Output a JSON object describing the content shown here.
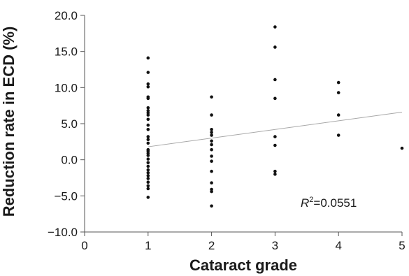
{
  "chart_data": {
    "type": "scatter",
    "title": "",
    "xlabel": "Cataract grade",
    "ylabel": "Reduction rate in ECD (%)",
    "xlim": [
      0,
      5
    ],
    "ylim": [
      -10,
      20
    ],
    "xticks": [
      "0",
      "1",
      "2",
      "3",
      "4",
      "5"
    ],
    "yticks": [
      "20.0",
      "15.0",
      "10.0",
      "5.0",
      "0.0",
      "−5.0",
      "−10.0"
    ],
    "grid": false,
    "legend": "none",
    "colors": {
      "points": "#111111",
      "trendline": "#a8a8a8",
      "axis": "#555555"
    },
    "annotation": {
      "italic_part": "R",
      "superscript": "2",
      "rest": "=0.0551"
    },
    "trendline": {
      "x": [
        1,
        5
      ],
      "y": [
        1.8,
        6.6
      ]
    },
    "points": [
      {
        "x": 1,
        "y": 14.1
      },
      {
        "x": 1,
        "y": 12.1
      },
      {
        "x": 1,
        "y": 10.5
      },
      {
        "x": 1,
        "y": 10.1
      },
      {
        "x": 1,
        "y": 8.7
      },
      {
        "x": 1,
        "y": 8.5
      },
      {
        "x": 1,
        "y": 7.2
      },
      {
        "x": 1,
        "y": 6.8
      },
      {
        "x": 1,
        "y": 6.5
      },
      {
        "x": 1,
        "y": 6.2
      },
      {
        "x": 1,
        "y": 5.6
      },
      {
        "x": 1,
        "y": 4.8
      },
      {
        "x": 1,
        "y": 4.2
      },
      {
        "x": 1,
        "y": 3.2
      },
      {
        "x": 1,
        "y": 2.8
      },
      {
        "x": 1,
        "y": 2.3
      },
      {
        "x": 1,
        "y": 1.4
      },
      {
        "x": 1,
        "y": 1.2
      },
      {
        "x": 1,
        "y": 0.9
      },
      {
        "x": 1,
        "y": 0.6
      },
      {
        "x": 1,
        "y": 0.1
      },
      {
        "x": 1,
        "y": -0.4
      },
      {
        "x": 1,
        "y": -0.9
      },
      {
        "x": 1,
        "y": -1.4
      },
      {
        "x": 1,
        "y": -1.8
      },
      {
        "x": 1,
        "y": -2.2
      },
      {
        "x": 1,
        "y": -2.6
      },
      {
        "x": 1,
        "y": -3.1
      },
      {
        "x": 1,
        "y": -3.6
      },
      {
        "x": 1,
        "y": -4.0
      },
      {
        "x": 1,
        "y": -5.2
      },
      {
        "x": 2,
        "y": 8.7
      },
      {
        "x": 2,
        "y": 6.2
      },
      {
        "x": 2,
        "y": 4.2
      },
      {
        "x": 2,
        "y": 3.8
      },
      {
        "x": 2,
        "y": 3.4
      },
      {
        "x": 2,
        "y": 2.6
      },
      {
        "x": 2,
        "y": 2.1
      },
      {
        "x": 2,
        "y": 1.4
      },
      {
        "x": 2,
        "y": 0.5
      },
      {
        "x": 2,
        "y": -0.2
      },
      {
        "x": 2,
        "y": -1.6
      },
      {
        "x": 2,
        "y": -3.2
      },
      {
        "x": 2,
        "y": -4.1
      },
      {
        "x": 2,
        "y": -4.4
      },
      {
        "x": 2,
        "y": -6.4
      },
      {
        "x": 3,
        "y": 18.4
      },
      {
        "x": 3,
        "y": 15.6
      },
      {
        "x": 3,
        "y": 11.1
      },
      {
        "x": 3,
        "y": 8.5
      },
      {
        "x": 3,
        "y": 3.2
      },
      {
        "x": 3,
        "y": 2.0
      },
      {
        "x": 3,
        "y": -1.6
      },
      {
        "x": 3,
        "y": -2.0
      },
      {
        "x": 4,
        "y": 10.7
      },
      {
        "x": 4,
        "y": 9.3
      },
      {
        "x": 4,
        "y": 6.2
      },
      {
        "x": 4,
        "y": 3.4
      },
      {
        "x": 5,
        "y": 1.6
      }
    ]
  }
}
